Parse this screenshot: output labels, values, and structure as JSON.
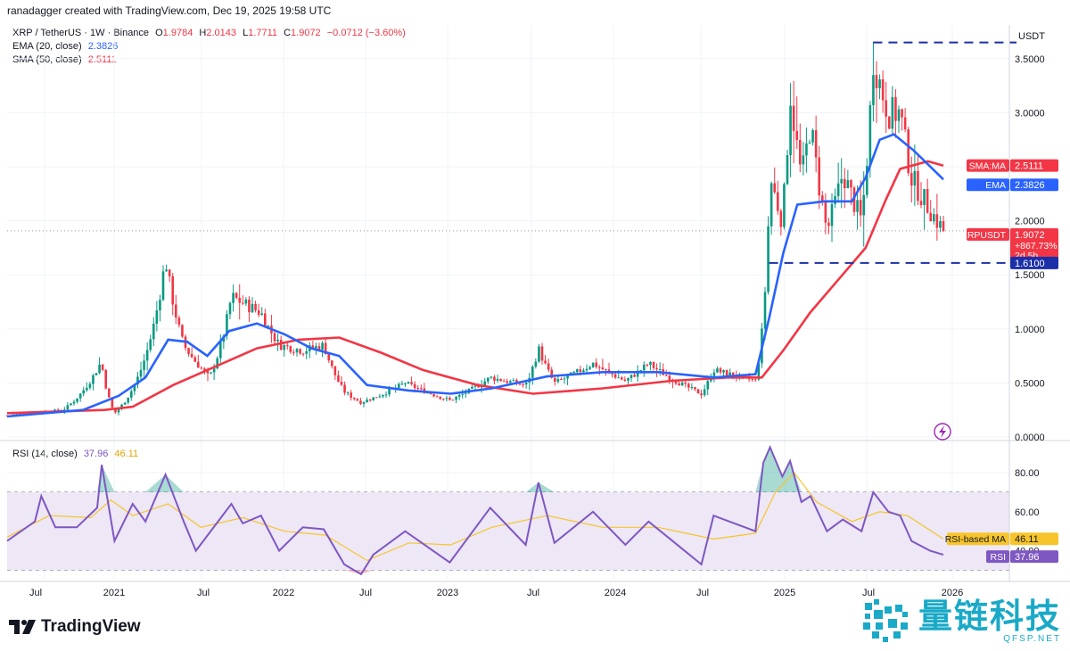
{
  "header": {
    "credit": "ranadagger created with TradingView.com, Dec 19, 2025 19:58 UTC"
  },
  "legend": {
    "symbol": "XRP / TetherUS · 1W · Binance",
    "open_label": "O",
    "open": "1.9784",
    "high_label": "H",
    "high": "2.0143",
    "low_label": "L",
    "low": "1.7711",
    "close_label": "C",
    "close": "1.9072",
    "change": "−0.0712 (−3.60%)",
    "ema_label": "EMA (20, close)",
    "ema_value": "2.3826",
    "sma_label": "SMA (50, close)",
    "sma_value": "2.5111",
    "rsi_label": "RSI (14, close)",
    "rsi_value": "37.96",
    "rsi_ma_value": "46.11"
  },
  "price_axis": {
    "currency": "USDT",
    "ticks": [
      "3.5000",
      "3.0000",
      "2.5000",
      "2.0000",
      "1.5000",
      "1.0000",
      "0.5000",
      "0.0000"
    ]
  },
  "price_labels": {
    "sma_tag": "SMA:MA",
    "sma_value": "2.5111",
    "ema_tag": "EMA",
    "ema_value": "2.3826",
    "sym_tag": "XRPUSDT",
    "sym_value": "1.9072",
    "sym_change": "+867.73%",
    "sym_countdown": "2d 5h",
    "support_value": "1.6100"
  },
  "rsi_axis": {
    "ticks": [
      "80.00",
      "60.00",
      "40.00"
    ],
    "ma_tag": "RSI-based MA",
    "ma_value": "46.11",
    "rsi_tag": "RSI",
    "rsi_value": "37.96"
  },
  "time_axis": {
    "labels": [
      "Jul",
      "2021",
      "Jul",
      "2022",
      "Jul",
      "2023",
      "Jul",
      "2024",
      "Jul",
      "2025",
      "Jul",
      "2026"
    ]
  },
  "branding": {
    "tradingview": "TradingView",
    "watermark_cn": "量链科技",
    "watermark_url": "QFSP.NET"
  },
  "colors": {
    "bull": "#089981",
    "bear": "#f23645",
    "ema": "#2962ff",
    "sma": "#f23645",
    "rsi": "#7e57c2",
    "rsi_ma": "#f7c52b",
    "support": "#1b2fa8",
    "rsi_band": "#ede7f6"
  },
  "chart_data": [
    {
      "type": "candlestick",
      "title": "XRP / TetherUS · 1W · Binance",
      "ylabel": "USDT",
      "ylim": [
        0,
        3.65
      ],
      "x_range": [
        "2020-05",
        "2026-02"
      ],
      "anchors": [
        {
          "date": "2020-05-01",
          "price": 0.2
        },
        {
          "date": "2020-09-01",
          "price": 0.25
        },
        {
          "date": "2020-11-24",
          "price": 0.7
        },
        {
          "date": "2020-12-23",
          "price": 0.22
        },
        {
          "date": "2021-02-01",
          "price": 0.45
        },
        {
          "date": "2021-04-14",
          "price": 1.65
        },
        {
          "date": "2021-05-24",
          "price": 0.85
        },
        {
          "date": "2021-07-20",
          "price": 0.55
        },
        {
          "date": "2021-09-06",
          "price": 1.3
        },
        {
          "date": "2021-11-10",
          "price": 1.15
        },
        {
          "date": "2021-12-20",
          "price": 0.85
        },
        {
          "date": "2022-02-10",
          "price": 0.8
        },
        {
          "date": "2022-03-28",
          "price": 0.85
        },
        {
          "date": "2022-05-12",
          "price": 0.42
        },
        {
          "date": "2022-06-18",
          "price": 0.32
        },
        {
          "date": "2022-09-23",
          "price": 0.5
        },
        {
          "date": "2022-12-30",
          "price": 0.34
        },
        {
          "date": "2023-03-29",
          "price": 0.55
        },
        {
          "date": "2023-06-15",
          "price": 0.48
        },
        {
          "date": "2023-07-13",
          "price": 0.82
        },
        {
          "date": "2023-08-17",
          "price": 0.5
        },
        {
          "date": "2023-11-10",
          "price": 0.68
        },
        {
          "date": "2024-01-20",
          "price": 0.52
        },
        {
          "date": "2024-03-11",
          "price": 0.68
        },
        {
          "date": "2024-07-05",
          "price": 0.4
        },
        {
          "date": "2024-08-01",
          "price": 0.62
        },
        {
          "date": "2024-11-01",
          "price": 0.52
        },
        {
          "date": "2024-11-18",
          "price": 1.1
        },
        {
          "date": "2024-12-03",
          "price": 2.4
        },
        {
          "date": "2024-12-30",
          "price": 2.0
        },
        {
          "date": "2025-01-16",
          "price": 3.2
        },
        {
          "date": "2025-02-10",
          "price": 2.4
        },
        {
          "date": "2025-03-02",
          "price": 2.9
        },
        {
          "date": "2025-04-07",
          "price": 1.9
        },
        {
          "date": "2025-05-12",
          "price": 2.45
        },
        {
          "date": "2025-06-22",
          "price": 2.0
        },
        {
          "date": "2025-07-18",
          "price": 3.5
        },
        {
          "date": "2025-08-20",
          "price": 3.0
        },
        {
          "date": "2025-09-15",
          "price": 3.0
        },
        {
          "date": "2025-10-10",
          "price": 2.4
        },
        {
          "date": "2025-11-20",
          "price": 2.1
        },
        {
          "date": "2025-12-19",
          "price": 1.9072
        }
      ],
      "ema20": [
        {
          "date": "2020-05-01",
          "v": 0.19
        },
        {
          "date": "2020-10-15",
          "v": 0.25
        },
        {
          "date": "2021-01-01",
          "v": 0.38
        },
        {
          "date": "2021-03-01",
          "v": 0.55
        },
        {
          "date": "2021-04-20",
          "v": 0.9
        },
        {
          "date": "2021-06-01",
          "v": 0.88
        },
        {
          "date": "2021-07-15",
          "v": 0.75
        },
        {
          "date": "2021-09-01",
          "v": 0.98
        },
        {
          "date": "2021-11-01",
          "v": 1.05
        },
        {
          "date": "2022-01-01",
          "v": 0.95
        },
        {
          "date": "2022-03-01",
          "v": 0.82
        },
        {
          "date": "2022-05-01",
          "v": 0.75
        },
        {
          "date": "2022-07-01",
          "v": 0.48
        },
        {
          "date": "2022-10-01",
          "v": 0.43
        },
        {
          "date": "2023-01-01",
          "v": 0.4
        },
        {
          "date": "2023-04-01",
          "v": 0.45
        },
        {
          "date": "2023-08-01",
          "v": 0.56
        },
        {
          "date": "2023-12-01",
          "v": 0.6
        },
        {
          "date": "2024-04-01",
          "v": 0.6
        },
        {
          "date": "2024-08-01",
          "v": 0.55
        },
        {
          "date": "2024-11-01",
          "v": 0.58
        },
        {
          "date": "2024-12-01",
          "v": 1.1
        },
        {
          "date": "2025-01-01",
          "v": 1.7
        },
        {
          "date": "2025-02-01",
          "v": 2.15
        },
        {
          "date": "2025-04-01",
          "v": 2.18
        },
        {
          "date": "2025-06-01",
          "v": 2.18
        },
        {
          "date": "2025-07-01",
          "v": 2.4
        },
        {
          "date": "2025-08-01",
          "v": 2.75
        },
        {
          "date": "2025-09-01",
          "v": 2.8
        },
        {
          "date": "2025-10-15",
          "v": 2.65
        },
        {
          "date": "2025-12-19",
          "v": 2.3826
        }
      ],
      "sma50": [
        {
          "date": "2020-05-01",
          "v": 0.22
        },
        {
          "date": "2020-12-01",
          "v": 0.25
        },
        {
          "date": "2021-02-01",
          "v": 0.28
        },
        {
          "date": "2021-05-01",
          "v": 0.48
        },
        {
          "date": "2021-08-01",
          "v": 0.65
        },
        {
          "date": "2021-11-01",
          "v": 0.82
        },
        {
          "date": "2022-02-01",
          "v": 0.9
        },
        {
          "date": "2022-05-01",
          "v": 0.92
        },
        {
          "date": "2022-08-01",
          "v": 0.78
        },
        {
          "date": "2022-11-01",
          "v": 0.62
        },
        {
          "date": "2023-03-01",
          "v": 0.48
        },
        {
          "date": "2023-07-01",
          "v": 0.4
        },
        {
          "date": "2023-12-01",
          "v": 0.45
        },
        {
          "date": "2024-05-01",
          "v": 0.52
        },
        {
          "date": "2024-09-01",
          "v": 0.55
        },
        {
          "date": "2024-11-15",
          "v": 0.55
        },
        {
          "date": "2025-01-01",
          "v": 0.8
        },
        {
          "date": "2025-03-01",
          "v": 1.15
        },
        {
          "date": "2025-05-01",
          "v": 1.45
        },
        {
          "date": "2025-07-01",
          "v": 1.75
        },
        {
          "date": "2025-08-15",
          "v": 2.2
        },
        {
          "date": "2025-09-15",
          "v": 2.48
        },
        {
          "date": "2025-11-15",
          "v": 2.55
        },
        {
          "date": "2025-12-19",
          "v": 2.5111
        }
      ],
      "horizontal_levels": [
        {
          "value": 3.65,
          "from": "2025-07-18",
          "to": "2026-03-01",
          "style": "dashed"
        },
        {
          "value": 1.61,
          "from": "2024-12-01",
          "to": "2026-03-01",
          "style": "dashed"
        }
      ],
      "grid": true
    },
    {
      "type": "line",
      "title": "RSI (14, close)",
      "ylim": [
        25,
        95
      ],
      "band": [
        30,
        70
      ],
      "rsi": [
        {
          "date": "2020-05-01",
          "v": 45
        },
        {
          "date": "2020-07-01",
          "v": 55
        },
        {
          "date": "2020-07-15",
          "v": 68
        },
        {
          "date": "2020-08-15",
          "v": 52
        },
        {
          "date": "2020-10-01",
          "v": 52
        },
        {
          "date": "2020-11-15",
          "v": 62
        },
        {
          "date": "2020-11-25",
          "v": 84
        },
        {
          "date": "2020-12-23",
          "v": 45
        },
        {
          "date": "2021-02-01",
          "v": 64
        },
        {
          "date": "2021-03-01",
          "v": 55
        },
        {
          "date": "2021-04-14",
          "v": 79
        },
        {
          "date": "2021-05-24",
          "v": 55
        },
        {
          "date": "2021-06-20",
          "v": 40
        },
        {
          "date": "2021-09-06",
          "v": 64
        },
        {
          "date": "2021-10-01",
          "v": 54
        },
        {
          "date": "2021-11-10",
          "v": 58
        },
        {
          "date": "2021-12-20",
          "v": 40
        },
        {
          "date": "2022-02-10",
          "v": 52
        },
        {
          "date": "2022-03-28",
          "v": 51
        },
        {
          "date": "2022-05-12",
          "v": 33
        },
        {
          "date": "2022-06-18",
          "v": 28
        },
        {
          "date": "2022-07-15",
          "v": 38
        },
        {
          "date": "2022-09-23",
          "v": 50
        },
        {
          "date": "2022-12-30",
          "v": 34
        },
        {
          "date": "2023-03-29",
          "v": 62
        },
        {
          "date": "2023-06-15",
          "v": 43
        },
        {
          "date": "2023-07-13",
          "v": 75
        },
        {
          "date": "2023-08-17",
          "v": 44
        },
        {
          "date": "2023-11-10",
          "v": 60
        },
        {
          "date": "2024-01-20",
          "v": 43
        },
        {
          "date": "2024-03-11",
          "v": 55
        },
        {
          "date": "2024-07-05",
          "v": 33
        },
        {
          "date": "2024-08-01",
          "v": 58
        },
        {
          "date": "2024-11-01",
          "v": 50
        },
        {
          "date": "2024-11-18",
          "v": 85
        },
        {
          "date": "2024-12-03",
          "v": 93
        },
        {
          "date": "2024-12-30",
          "v": 78
        },
        {
          "date": "2025-01-16",
          "v": 86
        },
        {
          "date": "2025-02-10",
          "v": 65
        },
        {
          "date": "2025-03-02",
          "v": 68
        },
        {
          "date": "2025-04-07",
          "v": 50
        },
        {
          "date": "2025-05-12",
          "v": 56
        },
        {
          "date": "2025-06-22",
          "v": 50
        },
        {
          "date": "2025-07-18",
          "v": 70
        },
        {
          "date": "2025-08-20",
          "v": 60
        },
        {
          "date": "2025-09-15",
          "v": 58
        },
        {
          "date": "2025-10-10",
          "v": 45
        },
        {
          "date": "2025-11-20",
          "v": 40
        },
        {
          "date": "2025-12-19",
          "v": 37.96
        }
      ],
      "rsi_ma": [
        {
          "date": "2020-05-01",
          "v": 47
        },
        {
          "date": "2020-08-01",
          "v": 58
        },
        {
          "date": "2020-11-01",
          "v": 57
        },
        {
          "date": "2020-12-15",
          "v": 66
        },
        {
          "date": "2021-02-01",
          "v": 58
        },
        {
          "date": "2021-04-20",
          "v": 64
        },
        {
          "date": "2021-07-01",
          "v": 52
        },
        {
          "date": "2021-10-01",
          "v": 57
        },
        {
          "date": "2022-01-01",
          "v": 50
        },
        {
          "date": "2022-04-01",
          "v": 48
        },
        {
          "date": "2022-07-01",
          "v": 35
        },
        {
          "date": "2022-10-01",
          "v": 44
        },
        {
          "date": "2023-01-01",
          "v": 43
        },
        {
          "date": "2023-04-01",
          "v": 52
        },
        {
          "date": "2023-08-01",
          "v": 58
        },
        {
          "date": "2023-12-01",
          "v": 52
        },
        {
          "date": "2024-04-01",
          "v": 52
        },
        {
          "date": "2024-08-01",
          "v": 46
        },
        {
          "date": "2024-11-01",
          "v": 49
        },
        {
          "date": "2024-12-15",
          "v": 70
        },
        {
          "date": "2025-01-25",
          "v": 80
        },
        {
          "date": "2025-03-15",
          "v": 65
        },
        {
          "date": "2025-06-01",
          "v": 55
        },
        {
          "date": "2025-08-01",
          "v": 60
        },
        {
          "date": "2025-10-01",
          "v": 58
        },
        {
          "date": "2025-12-19",
          "v": 46.11
        }
      ]
    }
  ]
}
